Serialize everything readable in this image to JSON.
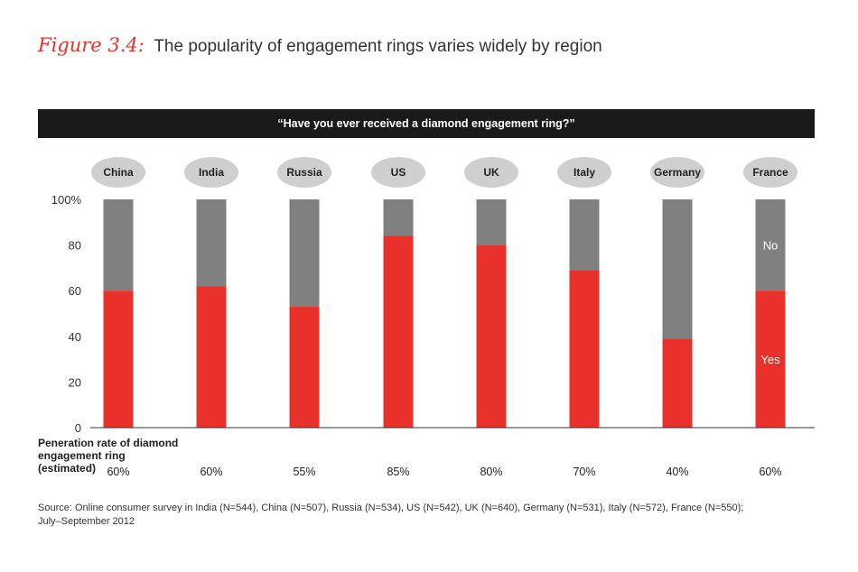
{
  "figure_label": "Figure 3.4:",
  "figure_title": "The popularity of engagement rings varies widely by region",
  "question": "“Have you ever received a diamond engagement ring?”",
  "penetration_label_lines": [
    "Peneration rate of diamond",
    "engagement ring",
    "(estimated)"
  ],
  "footnote_lines": [
    "Source: Online consumer survey in India (N=544), China (N=507), Russia (N=534), US (N=542), UK (N=640), Germany (N=531), Italy (N=572), France (N=550);",
    "July–September 2012"
  ],
  "colors": {
    "yes": "#e8312a",
    "no": "#808080",
    "map": "#cfcfcf",
    "axis": "#333333"
  },
  "chart_data": {
    "type": "bar",
    "stacked": true,
    "categories": [
      "China",
      "India",
      "Russia",
      "US",
      "UK",
      "Italy",
      "Germany",
      "France"
    ],
    "series": [
      {
        "name": "Yes",
        "values": [
          60,
          62,
          53,
          84,
          80,
          69,
          39,
          60
        ]
      },
      {
        "name": "No",
        "values": [
          40,
          38,
          47,
          16,
          20,
          31,
          61,
          40
        ]
      }
    ],
    "penetration_rates": [
      "60%",
      "60%",
      "55%",
      "85%",
      "80%",
      "70%",
      "40%",
      "60%"
    ],
    "series_labels": {
      "yes": "Yes",
      "no": "No"
    },
    "y_ticks": [
      "100%",
      "80",
      "60",
      "40",
      "20",
      "0"
    ],
    "y_tick_values": [
      100,
      80,
      60,
      40,
      20,
      0
    ],
    "ylim": [
      0,
      100
    ],
    "legend": "inline labels on France bar"
  }
}
